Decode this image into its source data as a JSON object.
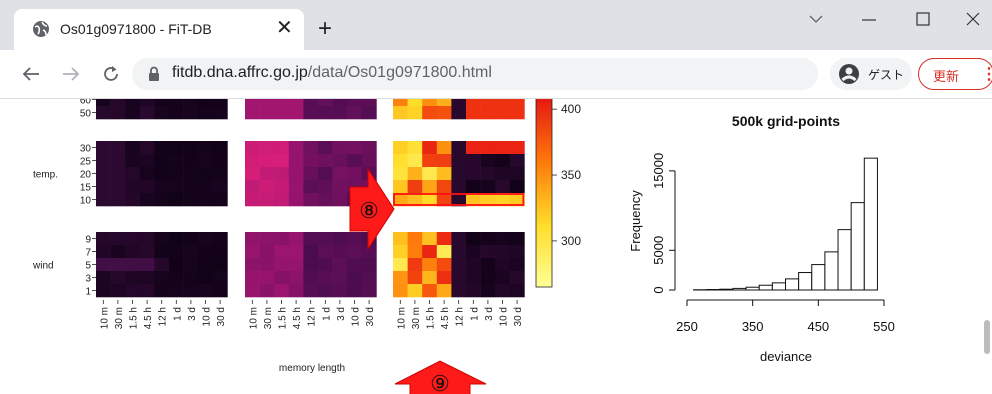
{
  "browser": {
    "tab_title": "Os01g0971800 - FiT-DB",
    "url_domain": "fitdb.dna.affrc.go.jp",
    "url_path": "/data/Os01g0971800.html",
    "profile_label": "ゲスト",
    "update_label": "更新",
    "icons": [
      "globe-icon",
      "close-icon",
      "plus-icon",
      "chevron-down-icon",
      "minimize-icon",
      "maximize-icon",
      "close-window-icon",
      "back-arrow-icon",
      "forward-arrow-icon",
      "reload-icon",
      "lock-icon",
      "profile-icon",
      "kebab-menu-icon"
    ]
  },
  "heatmap": {
    "row_groups": [
      {
        "label": "",
        "rows": [
          "60",
          "50"
        ]
      },
      {
        "label": "temp.",
        "rows": [
          "30",
          "25",
          "20",
          "15",
          "10"
        ]
      },
      {
        "label": "wind",
        "rows": [
          "9",
          "7",
          "5",
          "3",
          "1"
        ]
      }
    ],
    "columns": [
      "10 m",
      "30 m",
      "1.5 h",
      "4.5 h",
      "12 h",
      "1 d",
      "3 d",
      "10 d",
      "30 d"
    ],
    "xlabel": "memory length",
    "colorbar": {
      "ticks": [
        400,
        350,
        300
      ],
      "range": [
        265,
        410
      ]
    },
    "highlight_note": "row 10 of temp. in third panel outlined in red"
  },
  "annotations": {
    "arrow_row": "⑧",
    "arrow_col": "⑨"
  },
  "chart_data": {
    "type": "bar",
    "title": "500k grid-points",
    "xlabel": "deviance",
    "ylabel": "Frequency",
    "xticks": [
      250,
      350,
      450,
      550
    ],
    "yticks": [
      0,
      5000,
      15000
    ],
    "xlim": [
      250,
      550
    ],
    "ylim": [
      0,
      17500
    ],
    "bin_edges": [
      260,
      280,
      300,
      320,
      340,
      360,
      380,
      400,
      420,
      440,
      460,
      480,
      500,
      520,
      540
    ],
    "values": [
      30,
      60,
      100,
      200,
      350,
      600,
      900,
      1400,
      2200,
      3200,
      4800,
      7600,
      11000,
      16600
    ]
  }
}
